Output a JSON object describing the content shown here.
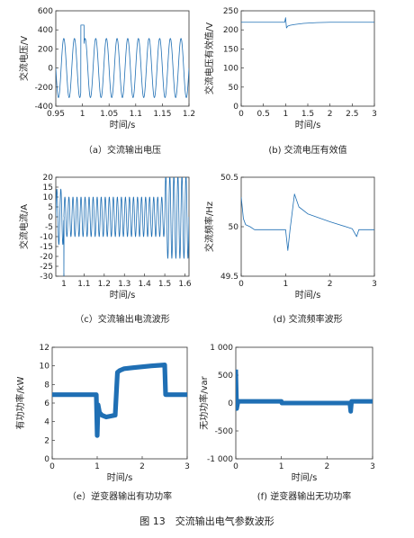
{
  "figure_title": "图 13　交流输出电气参数波形",
  "colors": {
    "trace": "#1f6fb4",
    "axis": "#333333"
  },
  "chart_data": [
    {
      "id": "a",
      "type": "line",
      "caption": "（a）交流输出电压",
      "xlabel": "时间/s",
      "ylabel": "交流电压/V",
      "xlim": [
        0.95,
        1.2
      ],
      "ylim": [
        -400,
        600
      ],
      "xticks": [
        0.95,
        1,
        1.05,
        1.1,
        1.15,
        1.2
      ],
      "xtick_labels": [
        "0.95",
        "1",
        "1.05",
        "1.1",
        "1.15",
        "1.2"
      ],
      "yticks": [
        -400,
        -200,
        0,
        200,
        400,
        600
      ],
      "ytick_labels": [
        "-400",
        "-200",
        "0",
        "200",
        "400",
        "600"
      ],
      "series": [
        {
          "signal": "sine",
          "freq_hz": 50,
          "amplitude": 310,
          "transient_at": 1.0,
          "transient_peak": 450
        }
      ]
    },
    {
      "id": "b",
      "type": "line",
      "caption": "(b) 交流电压有效值",
      "xlabel": "时间/s",
      "ylabel": "交流电压有效值/V",
      "xlim": [
        0,
        3
      ],
      "ylim": [
        0,
        250
      ],
      "xticks": [
        0,
        0.5,
        1,
        1.5,
        2,
        2.5,
        3
      ],
      "xtick_labels": [
        "0",
        "0.5",
        "1",
        "1.5",
        "2",
        "2.5",
        "3"
      ],
      "yticks": [
        0,
        50,
        100,
        150,
        200,
        250
      ],
      "ytick_labels": [
        "0",
        "50",
        "100",
        "150",
        "200",
        "250"
      ],
      "series": [
        {
          "x": [
            0,
            0.98,
            1.0,
            1.02,
            1.05,
            1.1,
            1.2,
            1.4,
            1.7,
            2.0,
            3.0
          ],
          "y": [
            220,
            220,
            232,
            205,
            210,
            212,
            214,
            217,
            219,
            220,
            220
          ]
        }
      ]
    },
    {
      "id": "c",
      "type": "line",
      "caption": "（c）交流输出电流波形",
      "xlabel": "时间/s",
      "ylabel": "交流电流/A",
      "xlim": [
        0.96,
        1.62
      ],
      "ylim": [
        -30,
        20
      ],
      "xticks": [
        1,
        1.1,
        1.2,
        1.3,
        1.4,
        1.5,
        1.6
      ],
      "xtick_labels": [
        "1",
        "1.1",
        "1.2",
        "1.3",
        "1.4",
        "1.5",
        "1.6"
      ],
      "yticks": [
        -30,
        -25,
        -20,
        -15,
        -10,
        -5,
        0,
        5,
        10,
        15,
        20
      ],
      "ytick_labels": [
        "-30",
        "-25",
        "-20",
        "-15",
        "-10",
        "-5",
        "0",
        "5",
        "10",
        "15",
        "20"
      ],
      "series": [
        {
          "signal": "sine",
          "freq_hz": 50,
          "segments": [
            {
              "x0": 0.96,
              "x1": 1.0,
              "amplitude": 14
            },
            {
              "x0": 1.0,
              "x1": 1.5,
              "amplitude": 10
            },
            {
              "x0": 1.5,
              "x1": 1.62,
              "amplitude": 21
            }
          ],
          "spike": {
            "x": 1.0,
            "y": -30
          }
        }
      ]
    },
    {
      "id": "d",
      "type": "line",
      "caption": "(d) 交流频率波形",
      "xlabel": "时间/s",
      "ylabel": "交流频率/Hz",
      "xlim": [
        0,
        3
      ],
      "ylim": [
        49.5,
        50.5
      ],
      "xticks": [
        0,
        1,
        2,
        3
      ],
      "xtick_labels": [
        "0",
        "1",
        "2",
        "3"
      ],
      "yticks": [
        49.5,
        50,
        50.5
      ],
      "ytick_labels": [
        "49.5",
        "50",
        "50.5"
      ],
      "series": [
        {
          "x": [
            0,
            0.05,
            0.1,
            0.2,
            0.3,
            0.5,
            0.9,
            1.0,
            1.05,
            1.1,
            1.2,
            1.3,
            1.5,
            2.0,
            2.5,
            2.6,
            2.65,
            3.0
          ],
          "y": [
            50.3,
            50.08,
            50.02,
            50.0,
            49.97,
            49.97,
            49.97,
            49.97,
            49.76,
            49.97,
            50.33,
            50.2,
            50.13,
            50.05,
            49.98,
            49.9,
            49.97,
            49.97
          ]
        }
      ]
    },
    {
      "id": "e",
      "type": "line",
      "caption": "（e）逆变器输出有功功率",
      "xlabel": "时间/s",
      "ylabel": "有功功率/kW",
      "xlim": [
        0,
        3
      ],
      "ylim": [
        0,
        12
      ],
      "xticks": [
        0,
        1,
        2,
        3
      ],
      "xtick_labels": [
        "0",
        "1",
        "2",
        "3"
      ],
      "yticks": [
        0,
        2,
        4,
        6,
        8,
        10,
        12
      ],
      "ytick_labels": [
        "0",
        "2",
        "4",
        "6",
        "8",
        "10",
        "12"
      ],
      "series": [
        {
          "x": [
            0,
            0.98,
            1.0,
            1.02,
            1.05,
            1.1,
            1.2,
            1.3,
            1.4,
            1.45,
            1.5,
            1.6,
            1.8,
            2.0,
            2.2,
            2.5,
            2.52,
            3.0
          ],
          "y": [
            6.9,
            6.9,
            2.5,
            5.8,
            5.0,
            4.7,
            4.5,
            4.6,
            4.7,
            9.3,
            9.5,
            9.7,
            9.8,
            9.9,
            10.0,
            10.1,
            6.9,
            6.9
          ],
          "band": 0.25
        }
      ]
    },
    {
      "id": "f",
      "type": "line",
      "caption": "(f) 逆变器输出无功功率",
      "xlabel": "时间/s",
      "ylabel": "无功功率/var",
      "xlim": [
        0,
        3
      ],
      "ylim": [
        -1000,
        1000
      ],
      "xticks": [
        0,
        1,
        2,
        3
      ],
      "xtick_labels": [
        "0",
        "1",
        "2",
        "3"
      ],
      "yticks": [
        -1000,
        -500,
        0,
        500,
        1000
      ],
      "ytick_labels": [
        "-1 000",
        "-500",
        "0",
        "500",
        "1 000"
      ],
      "series": [
        {
          "x": [
            0,
            0.02,
            0.05,
            0.1,
            1.0,
            1.01,
            1.02,
            2.5,
            2.52,
            2.54,
            3.0
          ],
          "y": [
            600,
            -100,
            30,
            30,
            30,
            0,
            0,
            0,
            -150,
            30,
            30
          ],
          "band": 40
        }
      ]
    }
  ]
}
